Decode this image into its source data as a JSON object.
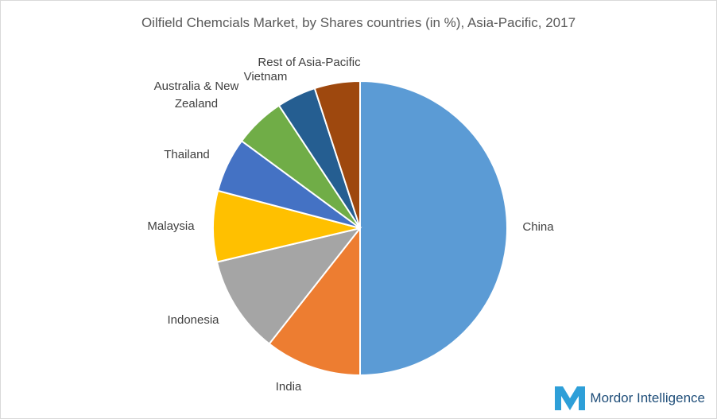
{
  "chart_data": {
    "type": "pie",
    "title": "Oilfield Chemcials Market, by  Shares countries (in %), Asia-Pacific, 2017",
    "categories": [
      "China",
      "India",
      "Indonesia",
      "Malaysia",
      "Thailand",
      "Australia & New Zealand",
      "Vietnam",
      "Rest of Asia-Pacific"
    ],
    "values": [
      50,
      10.6,
      10.7,
      7.8,
      6,
      5.6,
      4.3,
      5
    ],
    "colors": [
      "#5b9bd5",
      "#ed7d31",
      "#a5a5a5",
      "#ffc000",
      "#4472c4",
      "#70ad47",
      "#255e91",
      "#9e480e"
    ],
    "source": "Mordor Intelligence"
  }
}
